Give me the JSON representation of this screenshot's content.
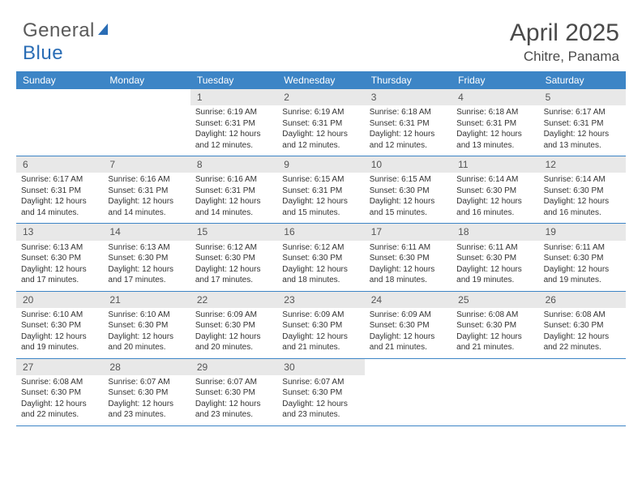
{
  "logo": {
    "text_gray": "General",
    "text_blue": "Blue"
  },
  "title": "April 2025",
  "location": "Chitre, Panama",
  "colors": {
    "header_bg": "#3d85c6",
    "daynum_bg": "#e8e8e8",
    "rule": "#3d85c6",
    "text": "#333333",
    "title_text": "#4a4a4a"
  },
  "weekdays": [
    "Sunday",
    "Monday",
    "Tuesday",
    "Wednesday",
    "Thursday",
    "Friday",
    "Saturday"
  ],
  "weeks": [
    [
      {
        "n": "",
        "sr": "",
        "ss": "",
        "dl": ""
      },
      {
        "n": "",
        "sr": "",
        "ss": "",
        "dl": ""
      },
      {
        "n": "1",
        "sr": "Sunrise: 6:19 AM",
        "ss": "Sunset: 6:31 PM",
        "dl": "Daylight: 12 hours and 12 minutes."
      },
      {
        "n": "2",
        "sr": "Sunrise: 6:19 AM",
        "ss": "Sunset: 6:31 PM",
        "dl": "Daylight: 12 hours and 12 minutes."
      },
      {
        "n": "3",
        "sr": "Sunrise: 6:18 AM",
        "ss": "Sunset: 6:31 PM",
        "dl": "Daylight: 12 hours and 12 minutes."
      },
      {
        "n": "4",
        "sr": "Sunrise: 6:18 AM",
        "ss": "Sunset: 6:31 PM",
        "dl": "Daylight: 12 hours and 13 minutes."
      },
      {
        "n": "5",
        "sr": "Sunrise: 6:17 AM",
        "ss": "Sunset: 6:31 PM",
        "dl": "Daylight: 12 hours and 13 minutes."
      }
    ],
    [
      {
        "n": "6",
        "sr": "Sunrise: 6:17 AM",
        "ss": "Sunset: 6:31 PM",
        "dl": "Daylight: 12 hours and 14 minutes."
      },
      {
        "n": "7",
        "sr": "Sunrise: 6:16 AM",
        "ss": "Sunset: 6:31 PM",
        "dl": "Daylight: 12 hours and 14 minutes."
      },
      {
        "n": "8",
        "sr": "Sunrise: 6:16 AM",
        "ss": "Sunset: 6:31 PM",
        "dl": "Daylight: 12 hours and 14 minutes."
      },
      {
        "n": "9",
        "sr": "Sunrise: 6:15 AM",
        "ss": "Sunset: 6:31 PM",
        "dl": "Daylight: 12 hours and 15 minutes."
      },
      {
        "n": "10",
        "sr": "Sunrise: 6:15 AM",
        "ss": "Sunset: 6:30 PM",
        "dl": "Daylight: 12 hours and 15 minutes."
      },
      {
        "n": "11",
        "sr": "Sunrise: 6:14 AM",
        "ss": "Sunset: 6:30 PM",
        "dl": "Daylight: 12 hours and 16 minutes."
      },
      {
        "n": "12",
        "sr": "Sunrise: 6:14 AM",
        "ss": "Sunset: 6:30 PM",
        "dl": "Daylight: 12 hours and 16 minutes."
      }
    ],
    [
      {
        "n": "13",
        "sr": "Sunrise: 6:13 AM",
        "ss": "Sunset: 6:30 PM",
        "dl": "Daylight: 12 hours and 17 minutes."
      },
      {
        "n": "14",
        "sr": "Sunrise: 6:13 AM",
        "ss": "Sunset: 6:30 PM",
        "dl": "Daylight: 12 hours and 17 minutes."
      },
      {
        "n": "15",
        "sr": "Sunrise: 6:12 AM",
        "ss": "Sunset: 6:30 PM",
        "dl": "Daylight: 12 hours and 17 minutes."
      },
      {
        "n": "16",
        "sr": "Sunrise: 6:12 AM",
        "ss": "Sunset: 6:30 PM",
        "dl": "Daylight: 12 hours and 18 minutes."
      },
      {
        "n": "17",
        "sr": "Sunrise: 6:11 AM",
        "ss": "Sunset: 6:30 PM",
        "dl": "Daylight: 12 hours and 18 minutes."
      },
      {
        "n": "18",
        "sr": "Sunrise: 6:11 AM",
        "ss": "Sunset: 6:30 PM",
        "dl": "Daylight: 12 hours and 19 minutes."
      },
      {
        "n": "19",
        "sr": "Sunrise: 6:11 AM",
        "ss": "Sunset: 6:30 PM",
        "dl": "Daylight: 12 hours and 19 minutes."
      }
    ],
    [
      {
        "n": "20",
        "sr": "Sunrise: 6:10 AM",
        "ss": "Sunset: 6:30 PM",
        "dl": "Daylight: 12 hours and 19 minutes."
      },
      {
        "n": "21",
        "sr": "Sunrise: 6:10 AM",
        "ss": "Sunset: 6:30 PM",
        "dl": "Daylight: 12 hours and 20 minutes."
      },
      {
        "n": "22",
        "sr": "Sunrise: 6:09 AM",
        "ss": "Sunset: 6:30 PM",
        "dl": "Daylight: 12 hours and 20 minutes."
      },
      {
        "n": "23",
        "sr": "Sunrise: 6:09 AM",
        "ss": "Sunset: 6:30 PM",
        "dl": "Daylight: 12 hours and 21 minutes."
      },
      {
        "n": "24",
        "sr": "Sunrise: 6:09 AM",
        "ss": "Sunset: 6:30 PM",
        "dl": "Daylight: 12 hours and 21 minutes."
      },
      {
        "n": "25",
        "sr": "Sunrise: 6:08 AM",
        "ss": "Sunset: 6:30 PM",
        "dl": "Daylight: 12 hours and 21 minutes."
      },
      {
        "n": "26",
        "sr": "Sunrise: 6:08 AM",
        "ss": "Sunset: 6:30 PM",
        "dl": "Daylight: 12 hours and 22 minutes."
      }
    ],
    [
      {
        "n": "27",
        "sr": "Sunrise: 6:08 AM",
        "ss": "Sunset: 6:30 PM",
        "dl": "Daylight: 12 hours and 22 minutes."
      },
      {
        "n": "28",
        "sr": "Sunrise: 6:07 AM",
        "ss": "Sunset: 6:30 PM",
        "dl": "Daylight: 12 hours and 23 minutes."
      },
      {
        "n": "29",
        "sr": "Sunrise: 6:07 AM",
        "ss": "Sunset: 6:30 PM",
        "dl": "Daylight: 12 hours and 23 minutes."
      },
      {
        "n": "30",
        "sr": "Sunrise: 6:07 AM",
        "ss": "Sunset: 6:30 PM",
        "dl": "Daylight: 12 hours and 23 minutes."
      },
      {
        "n": "",
        "sr": "",
        "ss": "",
        "dl": ""
      },
      {
        "n": "",
        "sr": "",
        "ss": "",
        "dl": ""
      },
      {
        "n": "",
        "sr": "",
        "ss": "",
        "dl": ""
      }
    ]
  ]
}
